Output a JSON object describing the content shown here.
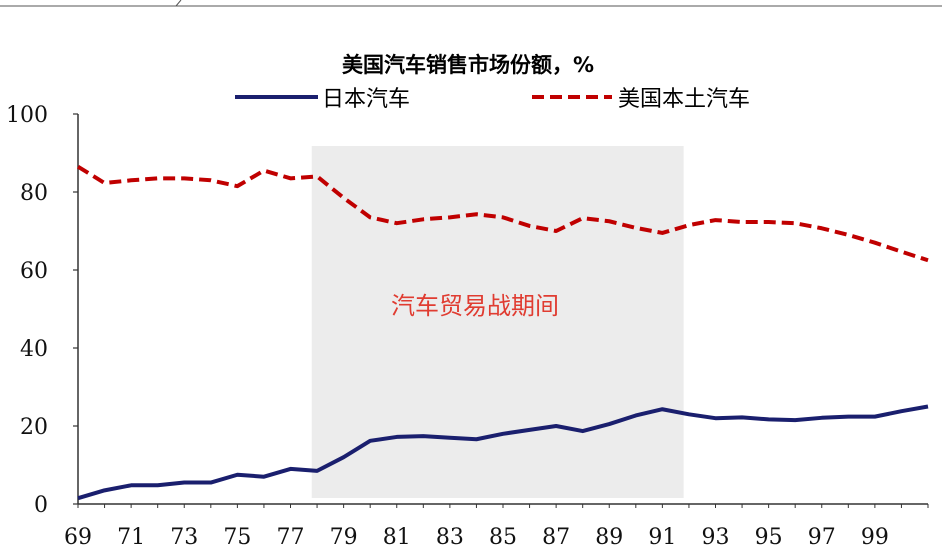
{
  "chart_data": {
    "type": "line",
    "title": "美国汽车销售市场份额，%",
    "xlabel": "",
    "ylabel": "",
    "ylim": [
      0,
      100
    ],
    "yticks": [
      0,
      20,
      40,
      60,
      80,
      100
    ],
    "xlim": [
      1969,
      2001
    ],
    "xtick_labels": [
      "69",
      "71",
      "73",
      "75",
      "77",
      "79",
      "81",
      "83",
      "85",
      "87",
      "89",
      "91",
      "93",
      "95",
      "97",
      "99"
    ],
    "xtick_years": [
      1969,
      1971,
      1973,
      1975,
      1977,
      1979,
      1981,
      1983,
      1985,
      1987,
      1989,
      1991,
      1993,
      1995,
      1997,
      1999
    ],
    "x": [
      1969,
      1970,
      1971,
      1972,
      1973,
      1974,
      1975,
      1976,
      1977,
      1978,
      1979,
      1980,
      1981,
      1982,
      1983,
      1984,
      1985,
      1986,
      1987,
      1988,
      1989,
      1990,
      1991,
      1992,
      1993,
      1994,
      1995,
      1996,
      1997,
      1998,
      1999,
      2000,
      2001
    ],
    "series": [
      {
        "name": "日本汽车",
        "style": "solid",
        "color": "#1a1f6e",
        "values": [
          1.5,
          3.5,
          4.8,
          4.8,
          5.5,
          5.5,
          7.5,
          7.0,
          9.0,
          8.5,
          12.0,
          16.2,
          17.2,
          17.4,
          17.0,
          16.6,
          18.0,
          19.0,
          20.0,
          18.7,
          20.5,
          22.7,
          24.3,
          23.0,
          22.0,
          22.2,
          21.7,
          21.5,
          22.1,
          22.4,
          22.4,
          23.8,
          25.0
        ]
      },
      {
        "name": "美国本土汽车",
        "style": "dashed",
        "color": "#c00000",
        "values": [
          86.5,
          82.3,
          83.0,
          83.5,
          83.5,
          83.0,
          81.5,
          85.5,
          83.5,
          84.0,
          78.5,
          73.5,
          72.0,
          73.0,
          73.5,
          74.3,
          73.5,
          71.3,
          70.0,
          73.3,
          72.5,
          70.8,
          69.5,
          71.5,
          72.8,
          72.3,
          72.3,
          72.0,
          70.7,
          69.0,
          67.0,
          64.7,
          62.5
        ]
      }
    ],
    "shaded_period": {
      "label": "汽车贸易战期间",
      "start": 1977.8,
      "end": 1991.8,
      "color": "#ececec",
      "label_color": "#e03c31"
    },
    "legend_position": "top"
  }
}
